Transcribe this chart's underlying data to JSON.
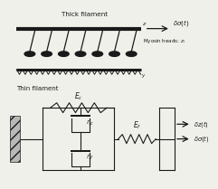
{
  "bg_color": "#f0f0eb",
  "line_color": "#1a1a1a",
  "thick_label": "Thick filament",
  "thin_label": "Thin filament",
  "myosin_label": "Myosin heads: $z_i$",
  "delta_sigma_label": "$\\delta\\sigma(t)$",
  "delta_z_label": "$\\delta z(t)$",
  "Ec_label": "$E_c$",
  "Ef_label": "$E_f$",
  "etac_label": "$\\eta_c$",
  "etaf_label": "$\\eta_f$",
  "z_label": "z",
  "y_label": "y",
  "num_myosin": 7,
  "num_teeth": 44
}
